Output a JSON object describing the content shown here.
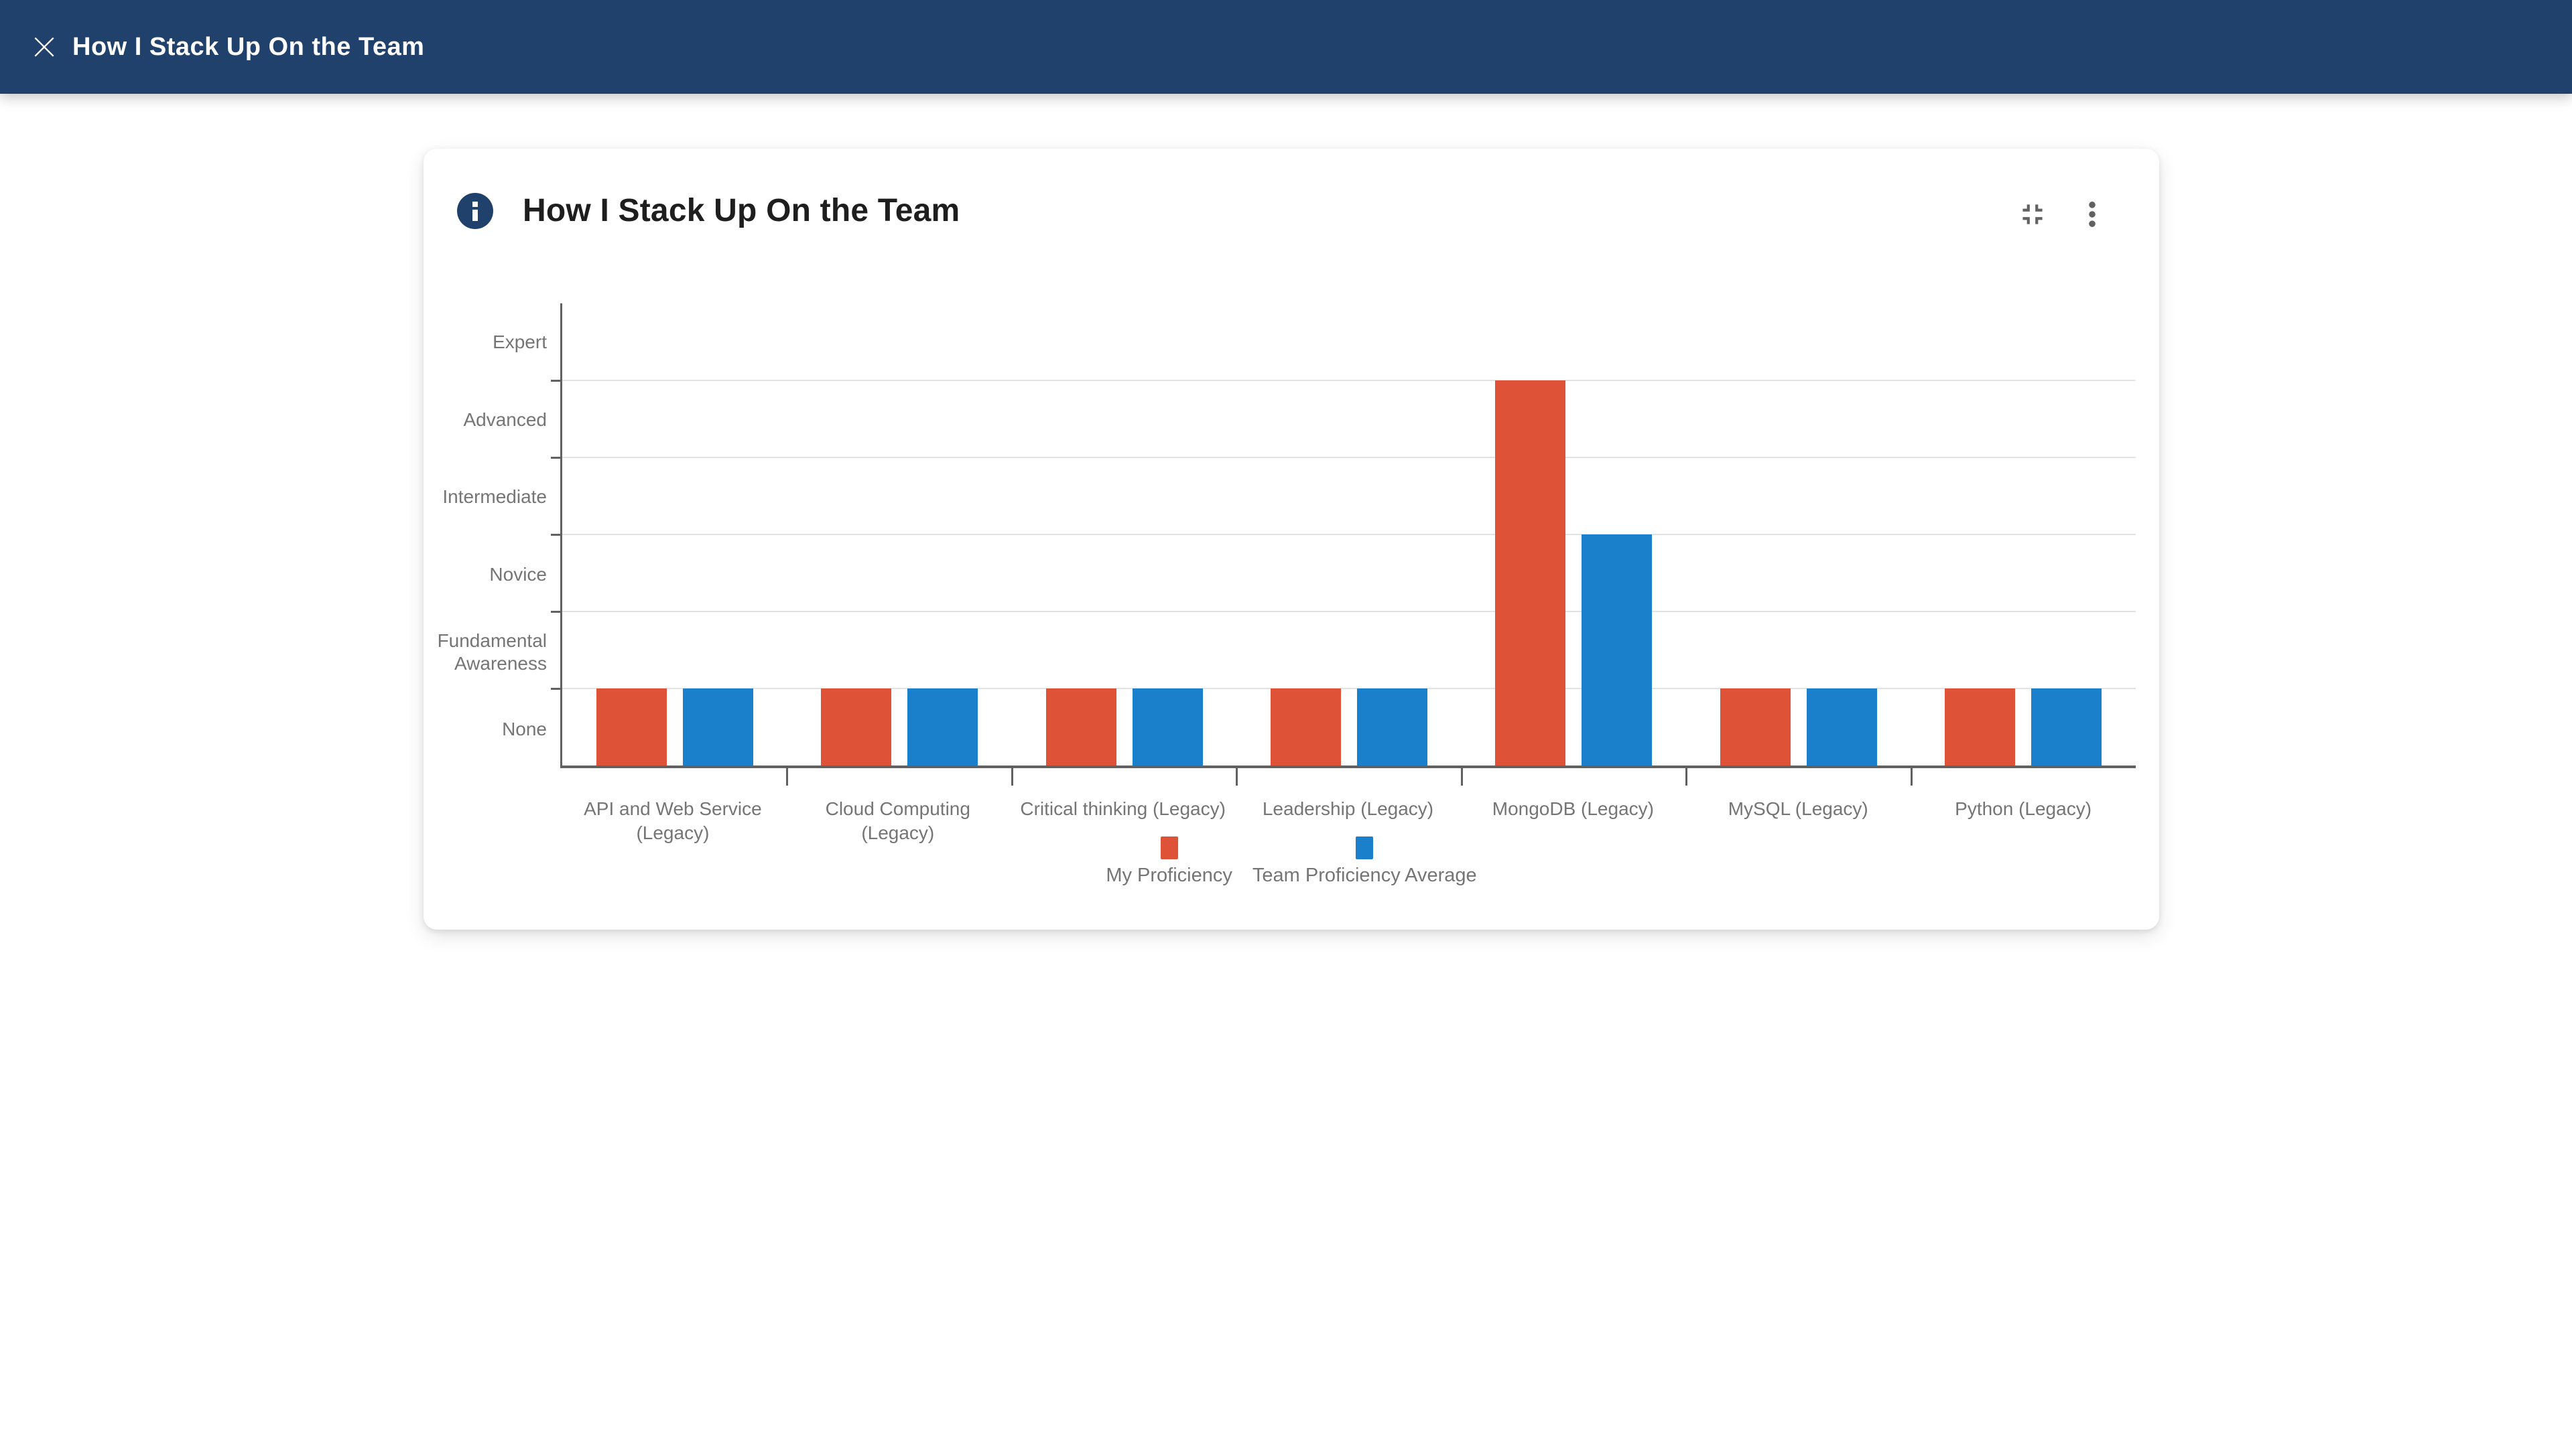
{
  "header": {
    "title": "How I Stack Up On the Team",
    "close_icon": "close-x-icon"
  },
  "card": {
    "title": "How I Stack Up On the Team",
    "info_icon": "info-icon",
    "collapse_icon": "collapse-icon",
    "menu_icon": "kebab-menu-icon"
  },
  "colors": {
    "header_bg": "#1F416B",
    "info_icon_bg": "#1F416B",
    "axis_line": "#616161",
    "gridline": "#E2E2E2",
    "axis_label_text": "#757575",
    "card_title_text": "#1E1E1E",
    "icon_gray": "#616161"
  },
  "chart_data": {
    "type": "bar",
    "title": "How I Stack Up On the Team",
    "categories": [
      "API and Web Service (Legacy)",
      "Cloud Computing (Legacy)",
      "Critical thinking (Legacy)",
      "Leadership (Legacy)",
      "MongoDB (Legacy)",
      "MySQL (Legacy)",
      "Python (Legacy)"
    ],
    "series": [
      {
        "name": "My Proficiency",
        "color": "#DE5338",
        "values": [
          1,
          1,
          1,
          1,
          5,
          1,
          1
        ]
      },
      {
        "name": "Team Proficiency Average",
        "color": "#1A80CC",
        "values": [
          1,
          1,
          1,
          1,
          3,
          1,
          1
        ]
      }
    ],
    "y_axis": {
      "labels_top_to_bottom": [
        "Expert",
        "Advanced",
        "Intermediate",
        "Novice",
        "Fundamental Awareness",
        "None"
      ],
      "range": [
        0,
        6
      ],
      "bands": 6
    },
    "xlabel": "",
    "ylabel": "",
    "grid": "horizontal",
    "legend_position": "bottom-center"
  }
}
